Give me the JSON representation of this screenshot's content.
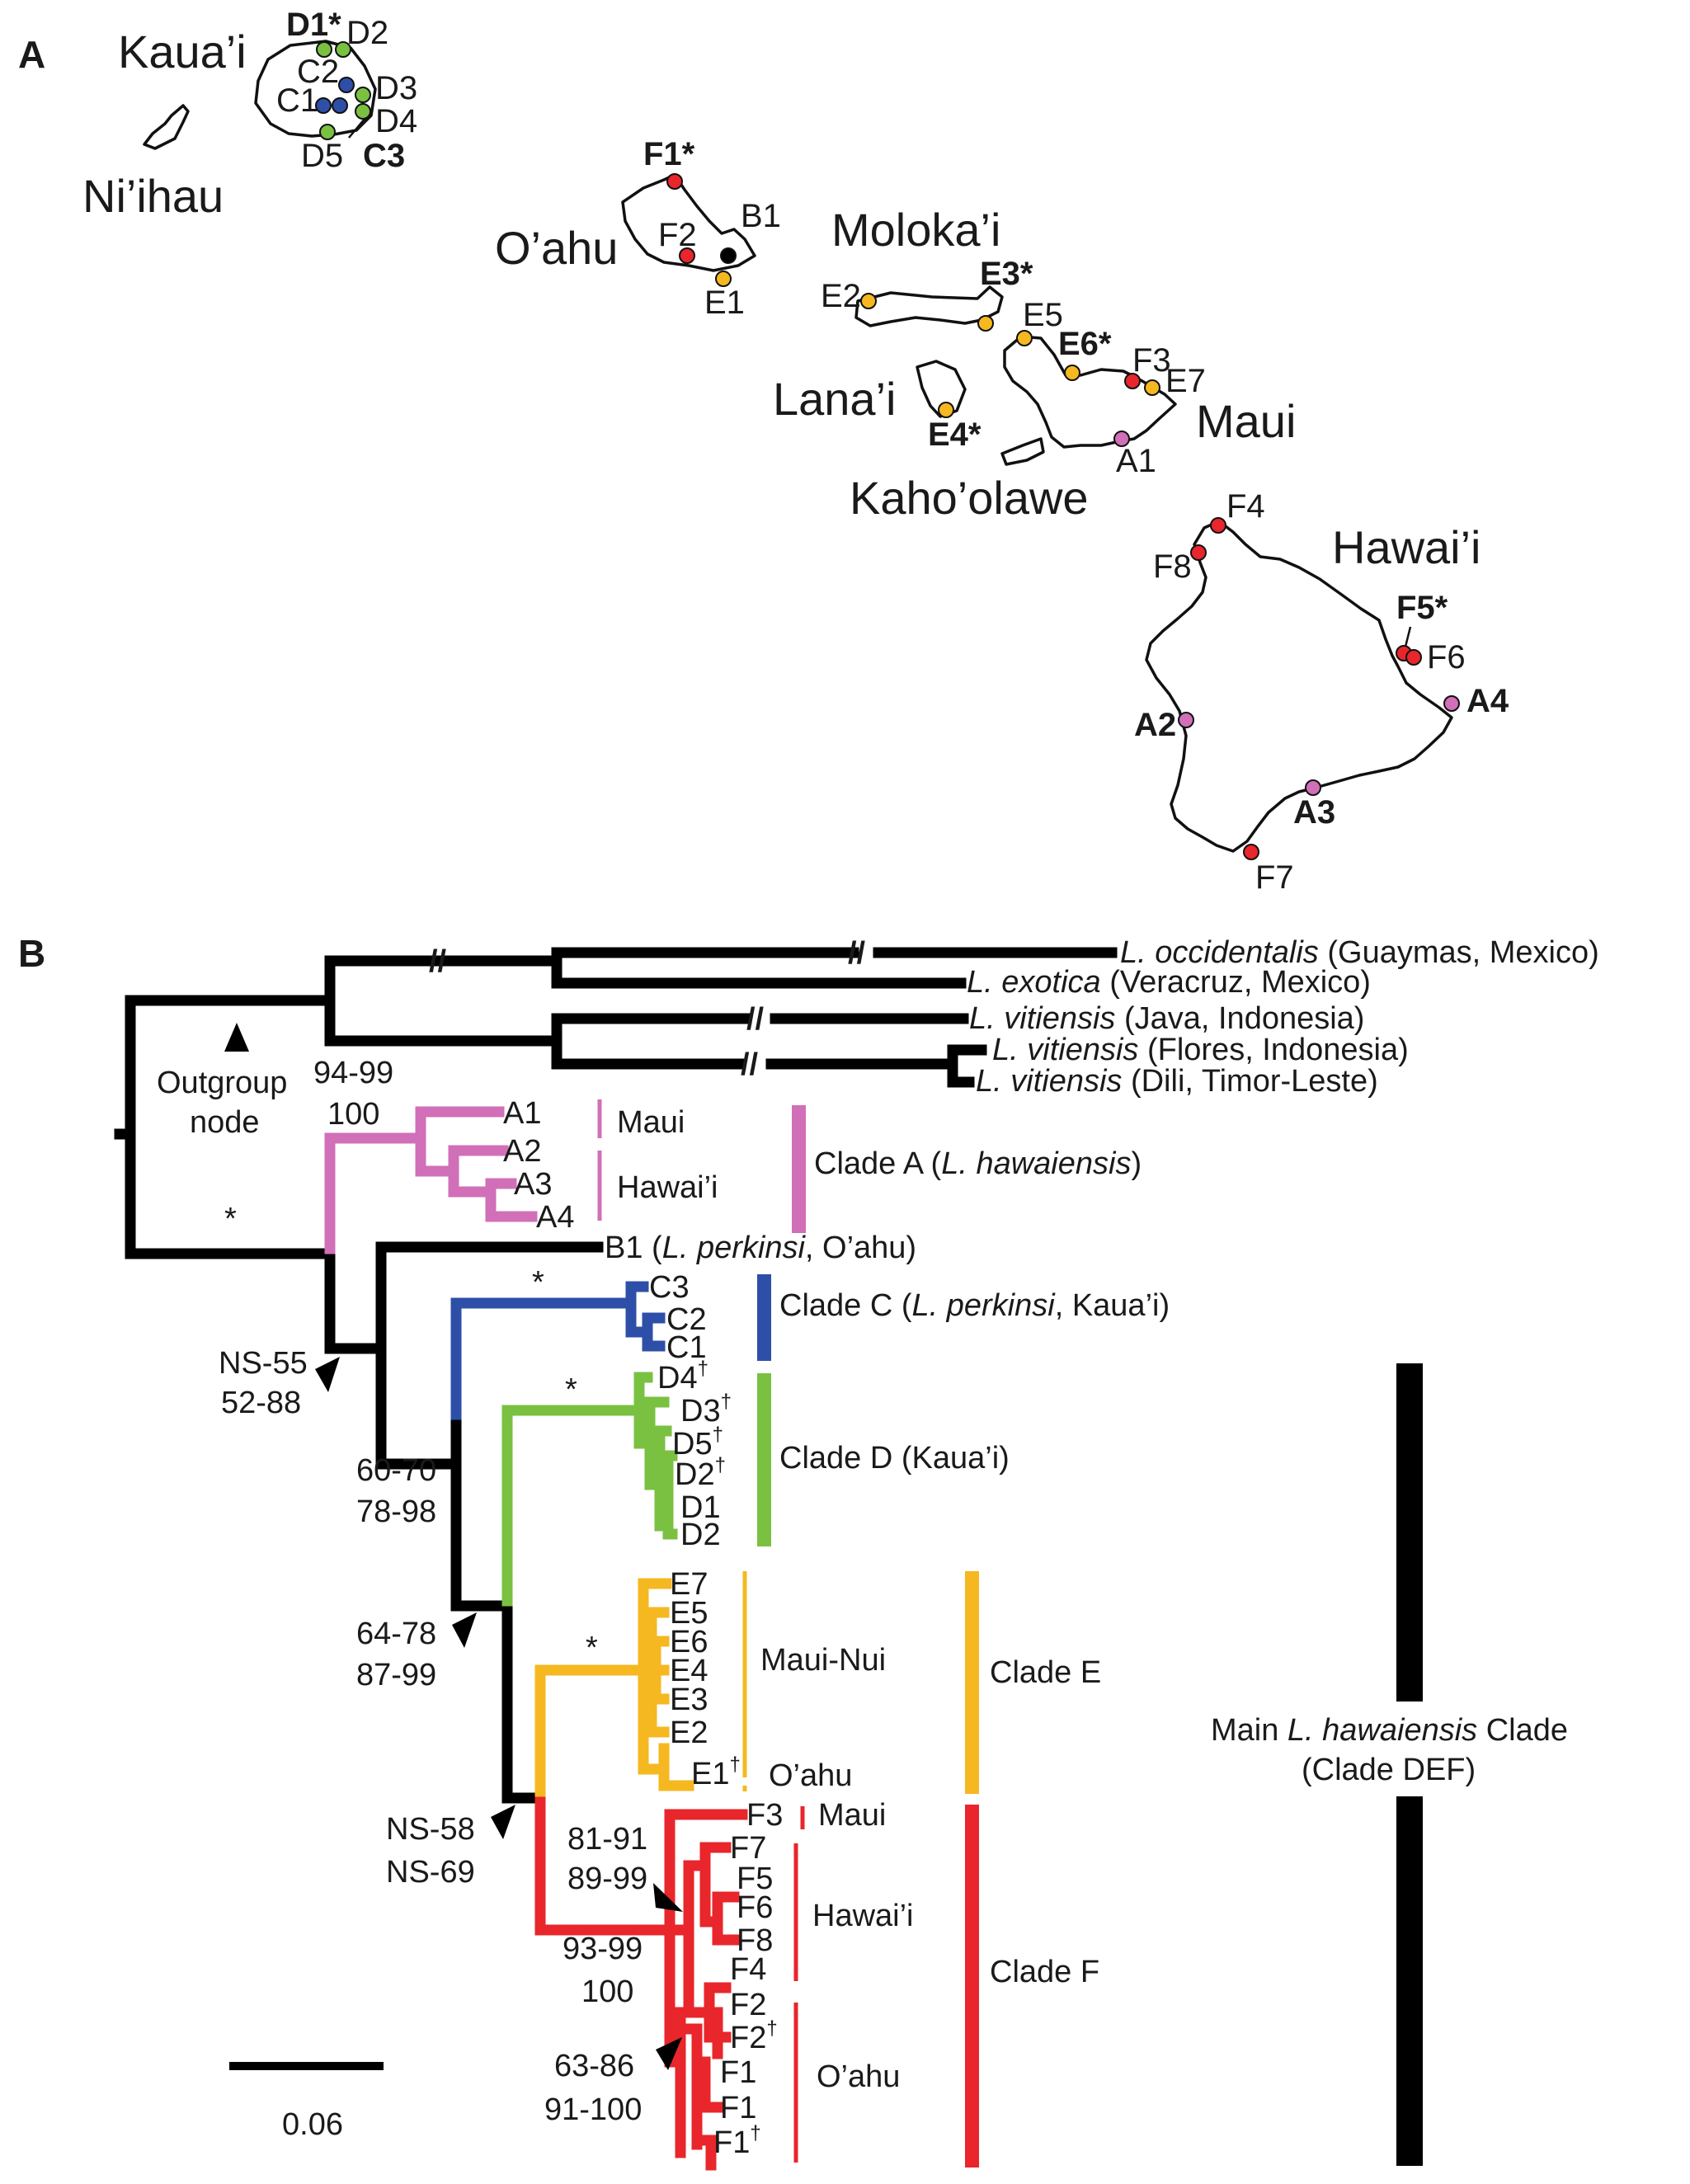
{
  "panels": {
    "a": "A",
    "b": "B"
  },
  "colors": {
    "cladeA": "#d16fb8",
    "cladeC": "#2e4fa8",
    "cladeD": "#7ac142",
    "cladeE": "#f5b820",
    "cladeF": "#e8262b",
    "outgroup": "#000000",
    "B": "#000000"
  },
  "map": {
    "islands": {
      "kauai": "Kaua’i",
      "niihau": "Ni’ihau",
      "oahu": "O’ahu",
      "molokai": "Moloka’i",
      "lanai": "Lana’i",
      "kahoolawe": "Kaho’olawe",
      "maui": "Maui",
      "hawaii": "Hawai’i"
    },
    "sites": {
      "D1": "D1*",
      "D2": "D2",
      "D3": "D3",
      "D4": "D4",
      "D5": "D5",
      "C1": "C1",
      "C2": "C2",
      "C3": "C3",
      "F1": "F1*",
      "F2": "F2",
      "B1": "B1",
      "E1": "E1",
      "E2": "E2",
      "E3": "E3*",
      "E4": "E4*",
      "E5": "E5",
      "E6": "E6*",
      "E7": "E7",
      "F3": "F3",
      "A1": "A1",
      "F4": "F4",
      "F8": "F8",
      "F5": "F5*",
      "F6": "F6",
      "A4": "A4",
      "A2": "A2",
      "A3": "A3",
      "F7": "F7"
    }
  },
  "tree": {
    "outgroup_taxa": [
      {
        "species": "L. occidentalis",
        "locality": " (Guaymas, Mexico)"
      },
      {
        "species": "L. exotica",
        "locality": " (Veracruz, Mexico)"
      },
      {
        "species": "L. vitiensis",
        "locality": " (Java, Indonesia)"
      },
      {
        "species": "L. vitiensis",
        "locality": " (Flores, Indonesia)"
      },
      {
        "species": "L. vitiensis",
        "locality": " (Dili, Timor-Leste)"
      }
    ],
    "break_mark": "//",
    "outgroup_node": {
      "line1": "Outgroup",
      "line2": "node"
    },
    "support": {
      "a1": "94-99",
      "a2": "100",
      "star": "*",
      "n1a": "NS-55",
      "n1b": "52-88",
      "n2a": "60-70",
      "n2b": "78-98",
      "n3a": "64-78",
      "n3b": "87-99",
      "n4a": "NS-58",
      "n4b": "NS-69",
      "f1a": "81-91",
      "f1b": "89-99",
      "f2a": "93-99",
      "f2b": "100",
      "f3a": "63-86",
      "f3b": "91-100"
    },
    "tips": {
      "A1": "A1",
      "A2": "A2",
      "A3": "A3",
      "A4": "A4",
      "B1": "B1",
      "B1_open": " (",
      "B1_species": "L. perkinsi",
      "B1_rest": ", O’ahu)",
      "C3": "C3",
      "C2": "C2",
      "C1": "C1",
      "D4": "D4",
      "D3": "D3",
      "D5": "D5",
      "D2a": "D2",
      "D1": "D1",
      "D2b": "D2",
      "E7": "E7",
      "E5": "E5",
      "E6": "E6",
      "E4": "E4",
      "E3": "E3",
      "E2": "E2",
      "E1": "E1",
      "F3": "F3",
      "F7": "F7",
      "F5": "F5",
      "F6": "F6",
      "F8": "F8",
      "F4": "F4",
      "F2a": "F2",
      "F2b": "F2",
      "F1a": "F1",
      "F1b": "F1",
      "F1c": "F1",
      "dagger": "†"
    },
    "region_labels": {
      "maui_a": "Maui",
      "hawaii_a": "Hawai’i",
      "mauinui": "Maui-Nui",
      "oahu_e": "O’ahu",
      "maui_f": "Maui",
      "hawaii_f": "Hawai’i",
      "oahu_f": "O’ahu"
    },
    "clade_labels": {
      "A_pre": "Clade A (",
      "A_species": "L. hawaiensis",
      "A_post": ")",
      "C_pre": "Clade C (",
      "C_species": "L. perkinsi",
      "C_post": ", Kaua’i)",
      "D": "Clade D (Kaua’i)",
      "E": "Clade E",
      "F": "Clade F",
      "main_pre": "Main ",
      "main_species": "L. hawaiensis",
      "main_post": " Clade",
      "main_line2": "(Clade DEF)"
    },
    "scale_bar": "0.06"
  }
}
